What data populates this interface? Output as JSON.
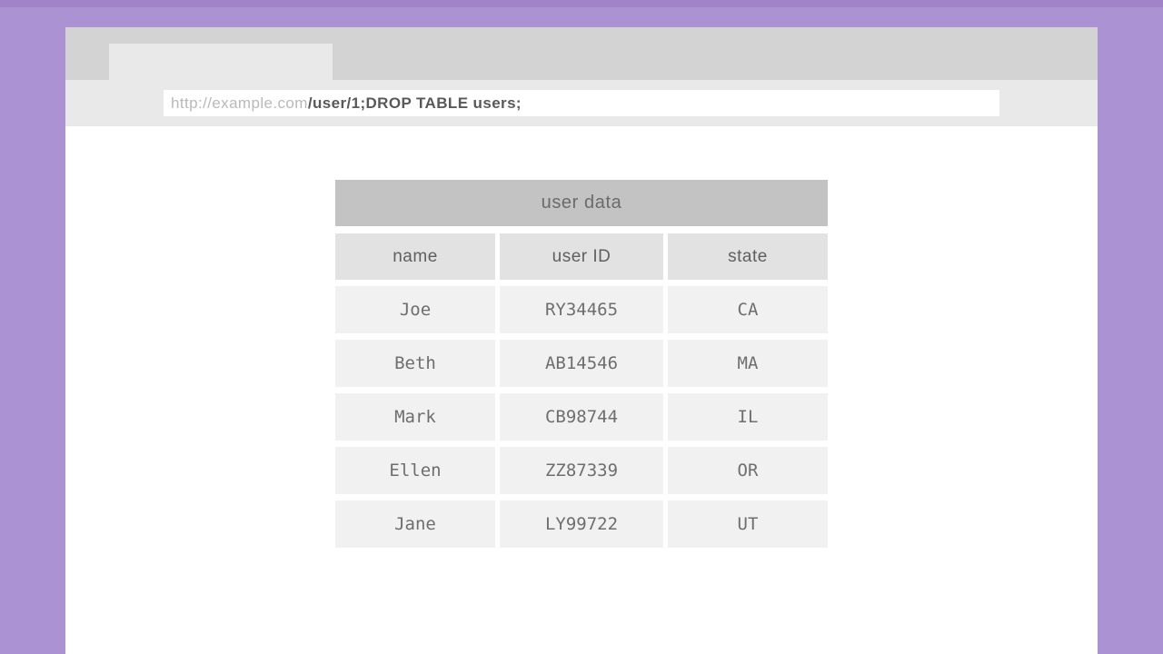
{
  "colors": {
    "background_purple": "#ab93d3",
    "background_purple_dark": "#a084c7",
    "chrome_gray": "#d3d3d3",
    "chrome_light_gray": "#e9e9e9",
    "table_title_gray": "#c3c3c3",
    "table_header_gray": "#e2e2e2",
    "table_row_gray": "#f1f1f1"
  },
  "browser": {
    "url": {
      "domain": "http://example.com",
      "path": "/user/1;DROP TABLE users;"
    }
  },
  "table": {
    "title": "user data",
    "columns": [
      "name",
      "user ID",
      "state"
    ],
    "rows": [
      {
        "name": "Joe",
        "user_id": "RY34465",
        "state": "CA"
      },
      {
        "name": "Beth",
        "user_id": "AB14546",
        "state": "MA"
      },
      {
        "name": "Mark",
        "user_id": "CB98744",
        "state": "IL"
      },
      {
        "name": "Ellen",
        "user_id": "ZZ87339",
        "state": "OR"
      },
      {
        "name": "Jane",
        "user_id": "LY99722",
        "state": "UT"
      }
    ]
  }
}
